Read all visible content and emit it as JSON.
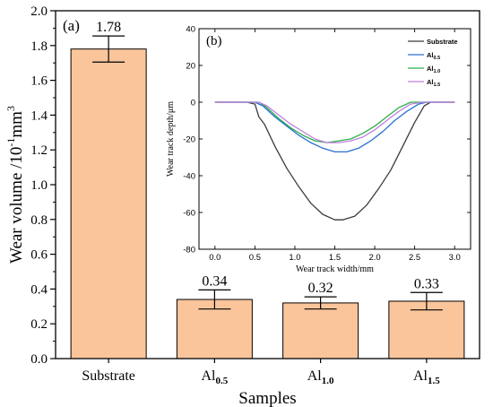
{
  "chart_data": [
    {
      "type": "bar",
      "panel_label": "(a)",
      "xlabel": "Samples",
      "ylabel": "Wear volume /10",
      "ylabel_exp": "-1",
      "ylabel_unit": "mm",
      "ylabel_unit_exp": "3",
      "ylim": [
        0,
        2.0
      ],
      "yticks": [
        "0.0",
        "0.2",
        "0.4",
        "0.6",
        "0.8",
        "1.0",
        "1.2",
        "1.4",
        "1.6",
        "1.8",
        "2.0"
      ],
      "categories": [
        {
          "base": "Substrate",
          "sub": ""
        },
        {
          "base": "Al",
          "sub": "0.5"
        },
        {
          "base": "Al",
          "sub": "1.0"
        },
        {
          "base": "Al",
          "sub": "1.5"
        }
      ],
      "values": [
        1.78,
        0.34,
        0.32,
        0.33
      ],
      "value_labels": [
        "1.78",
        "0.34",
        "0.32",
        "0.33"
      ],
      "errors": [
        0.075,
        0.055,
        0.035,
        0.05
      ],
      "bar_color": "#FBC59B"
    },
    {
      "type": "line",
      "panel_label": "(b)",
      "xlabel": "Wear track width/mm",
      "ylabel": "Wear track depth/μm",
      "xlim": [
        -0.2,
        3.2
      ],
      "ylim": [
        -80,
        40
      ],
      "xticks": [
        "0.0",
        "0.5",
        "1.0",
        "1.5",
        "2.0",
        "2.5",
        "3.0"
      ],
      "yticks": [
        "-80",
        "-60",
        "-40",
        "-20",
        "0",
        "20",
        "40"
      ],
      "legend_position": "top-right",
      "series": [
        {
          "name": "Substrate",
          "sub": "",
          "color": "#3b3b3b",
          "x": [
            0,
            0.2,
            0.4,
            0.5,
            0.55,
            0.62,
            0.75,
            0.9,
            1.05,
            1.2,
            1.35,
            1.5,
            1.6,
            1.75,
            1.9,
            2.05,
            2.2,
            2.35,
            2.5,
            2.62,
            2.7,
            2.8,
            2.9,
            3.0
          ],
          "y": [
            0,
            0,
            0,
            -1,
            -8,
            -12,
            -24,
            -36,
            -46,
            -55,
            -61,
            -64,
            -64,
            -62,
            -56,
            -47,
            -37,
            -24,
            -11,
            -2,
            0,
            0,
            0,
            0
          ]
        },
        {
          "name": "Al",
          "sub": "0.5",
          "color": "#2a6fd4",
          "x": [
            0,
            0.3,
            0.5,
            0.6,
            0.75,
            0.9,
            1.05,
            1.2,
            1.35,
            1.5,
            1.65,
            1.8,
            1.95,
            2.1,
            2.25,
            2.4,
            2.55,
            2.65,
            3.0
          ],
          "y": [
            0,
            0,
            0,
            -2,
            -8,
            -13,
            -18,
            -22,
            -25,
            -27,
            -27,
            -25,
            -21,
            -16,
            -10,
            -5,
            -1,
            0,
            0
          ]
        },
        {
          "name": "Al",
          "sub": "1.0",
          "color": "#2bb04a",
          "x": [
            0,
            0.3,
            0.55,
            0.65,
            0.8,
            0.95,
            1.1,
            1.25,
            1.4,
            1.55,
            1.7,
            1.85,
            2.0,
            2.15,
            2.3,
            2.45,
            3.0
          ],
          "y": [
            0,
            0,
            0,
            -3,
            -9,
            -14,
            -18,
            -21,
            -22,
            -21,
            -20,
            -17,
            -13,
            -8,
            -3,
            0,
            0
          ]
        },
        {
          "name": "Al",
          "sub": "1.5",
          "color": "#c27ee0",
          "x": [
            0,
            0.3,
            0.55,
            0.65,
            0.8,
            0.95,
            1.1,
            1.25,
            1.4,
            1.55,
            1.7,
            1.85,
            2.0,
            2.15,
            2.3,
            2.45,
            2.6,
            3.0
          ],
          "y": [
            0,
            0,
            0,
            -2,
            -7,
            -12,
            -16,
            -20,
            -22,
            -22,
            -21,
            -19,
            -15,
            -10,
            -5,
            -1,
            0,
            0
          ]
        }
      ]
    }
  ]
}
